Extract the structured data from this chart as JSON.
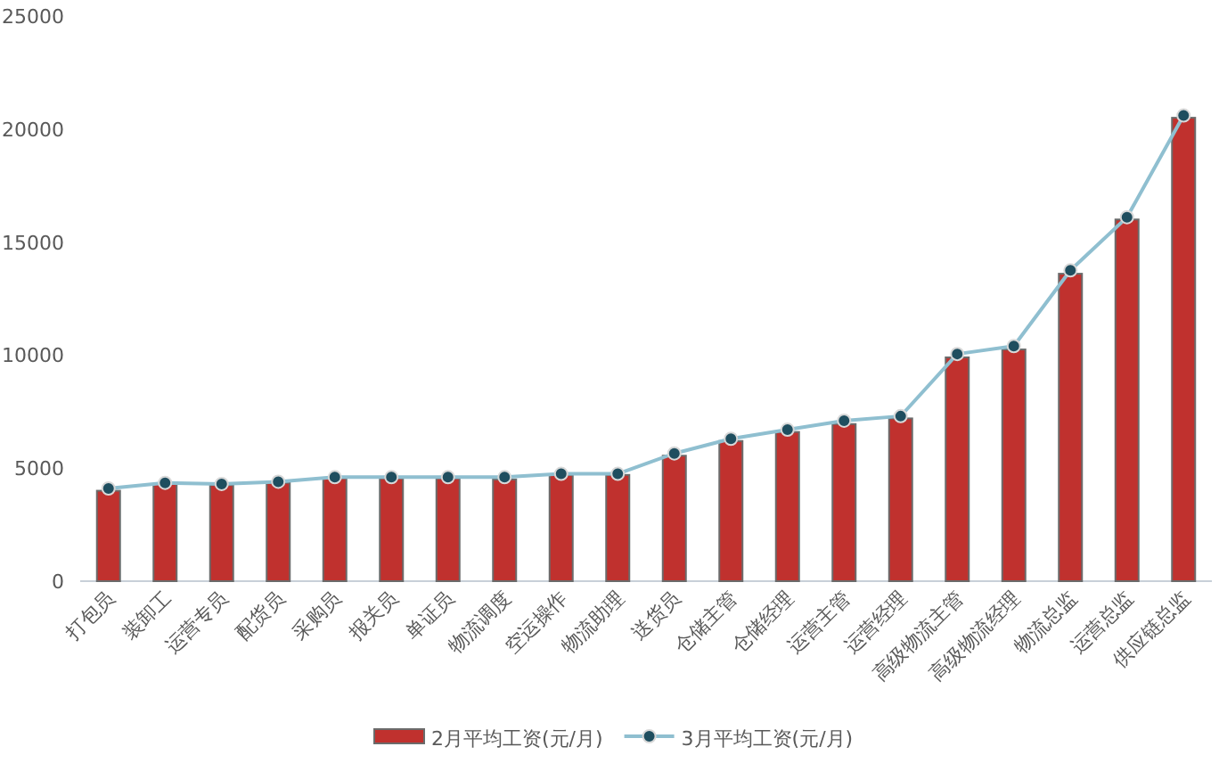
{
  "chart_data": {
    "type": "bar",
    "categories": [
      "打包员",
      "装卸工",
      "运营专员",
      "配货员",
      "采购员",
      "报关员",
      "单证员",
      "物流调度",
      "空运操作",
      "物流助理",
      "送货员",
      "仓储主管",
      "仓储经理",
      "运营主管",
      "运营经理",
      "高级物流主管",
      "高级物流经理",
      "物流总监",
      "运营总监",
      "供应链总监"
    ],
    "series": [
      {
        "name": "2月平均工资(元/月)",
        "color": "#c0312e",
        "values": [
          4000,
          4300,
          4250,
          4350,
          4550,
          4550,
          4550,
          4500,
          4700,
          4700,
          5550,
          6200,
          6600,
          6950,
          7200,
          9900,
          10250,
          13600,
          16000,
          20500
        ]
      },
      {
        "name": "3月平均工资(元/月)",
        "type": "line",
        "color": "#8fbfd0",
        "values": [
          4100,
          4350,
          4300,
          4400,
          4600,
          4600,
          4600,
          4600,
          4750,
          4750,
          5650,
          6300,
          6700,
          7100,
          7300,
          10050,
          10400,
          13750,
          16100,
          20600
        ]
      }
    ],
    "ylim": [
      0,
      25000
    ],
    "yticks": [
      0,
      5000,
      10000,
      15000,
      20000,
      25000
    ],
    "legend": "bottom",
    "marker": "circle"
  }
}
